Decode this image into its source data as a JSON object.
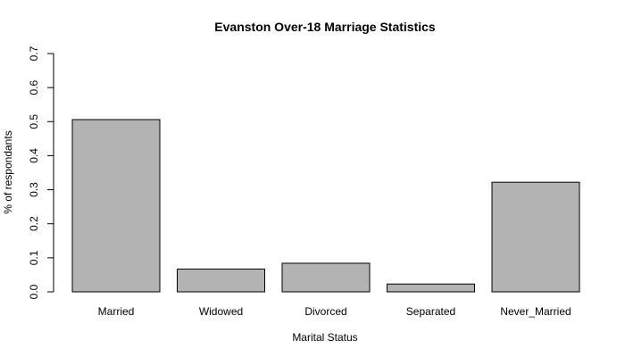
{
  "chart_data": {
    "type": "bar",
    "title": "Evanston Over-18 Marriage Statistics",
    "xlabel": "Marital Status",
    "ylabel": "% of respondants",
    "categories": [
      "Married",
      "Widowed",
      "Divorced",
      "Separated",
      "Never_Married"
    ],
    "values": [
      0.506,
      0.067,
      0.084,
      0.023,
      0.322
    ],
    "ylim": [
      0,
      0.7
    ],
    "yticks": [
      "0.0",
      "0.1",
      "0.2",
      "0.3",
      "0.4",
      "0.5",
      "0.6",
      "0.7"
    ],
    "grid": false,
    "legend": "none",
    "bar_color": "#b3b3b3"
  }
}
